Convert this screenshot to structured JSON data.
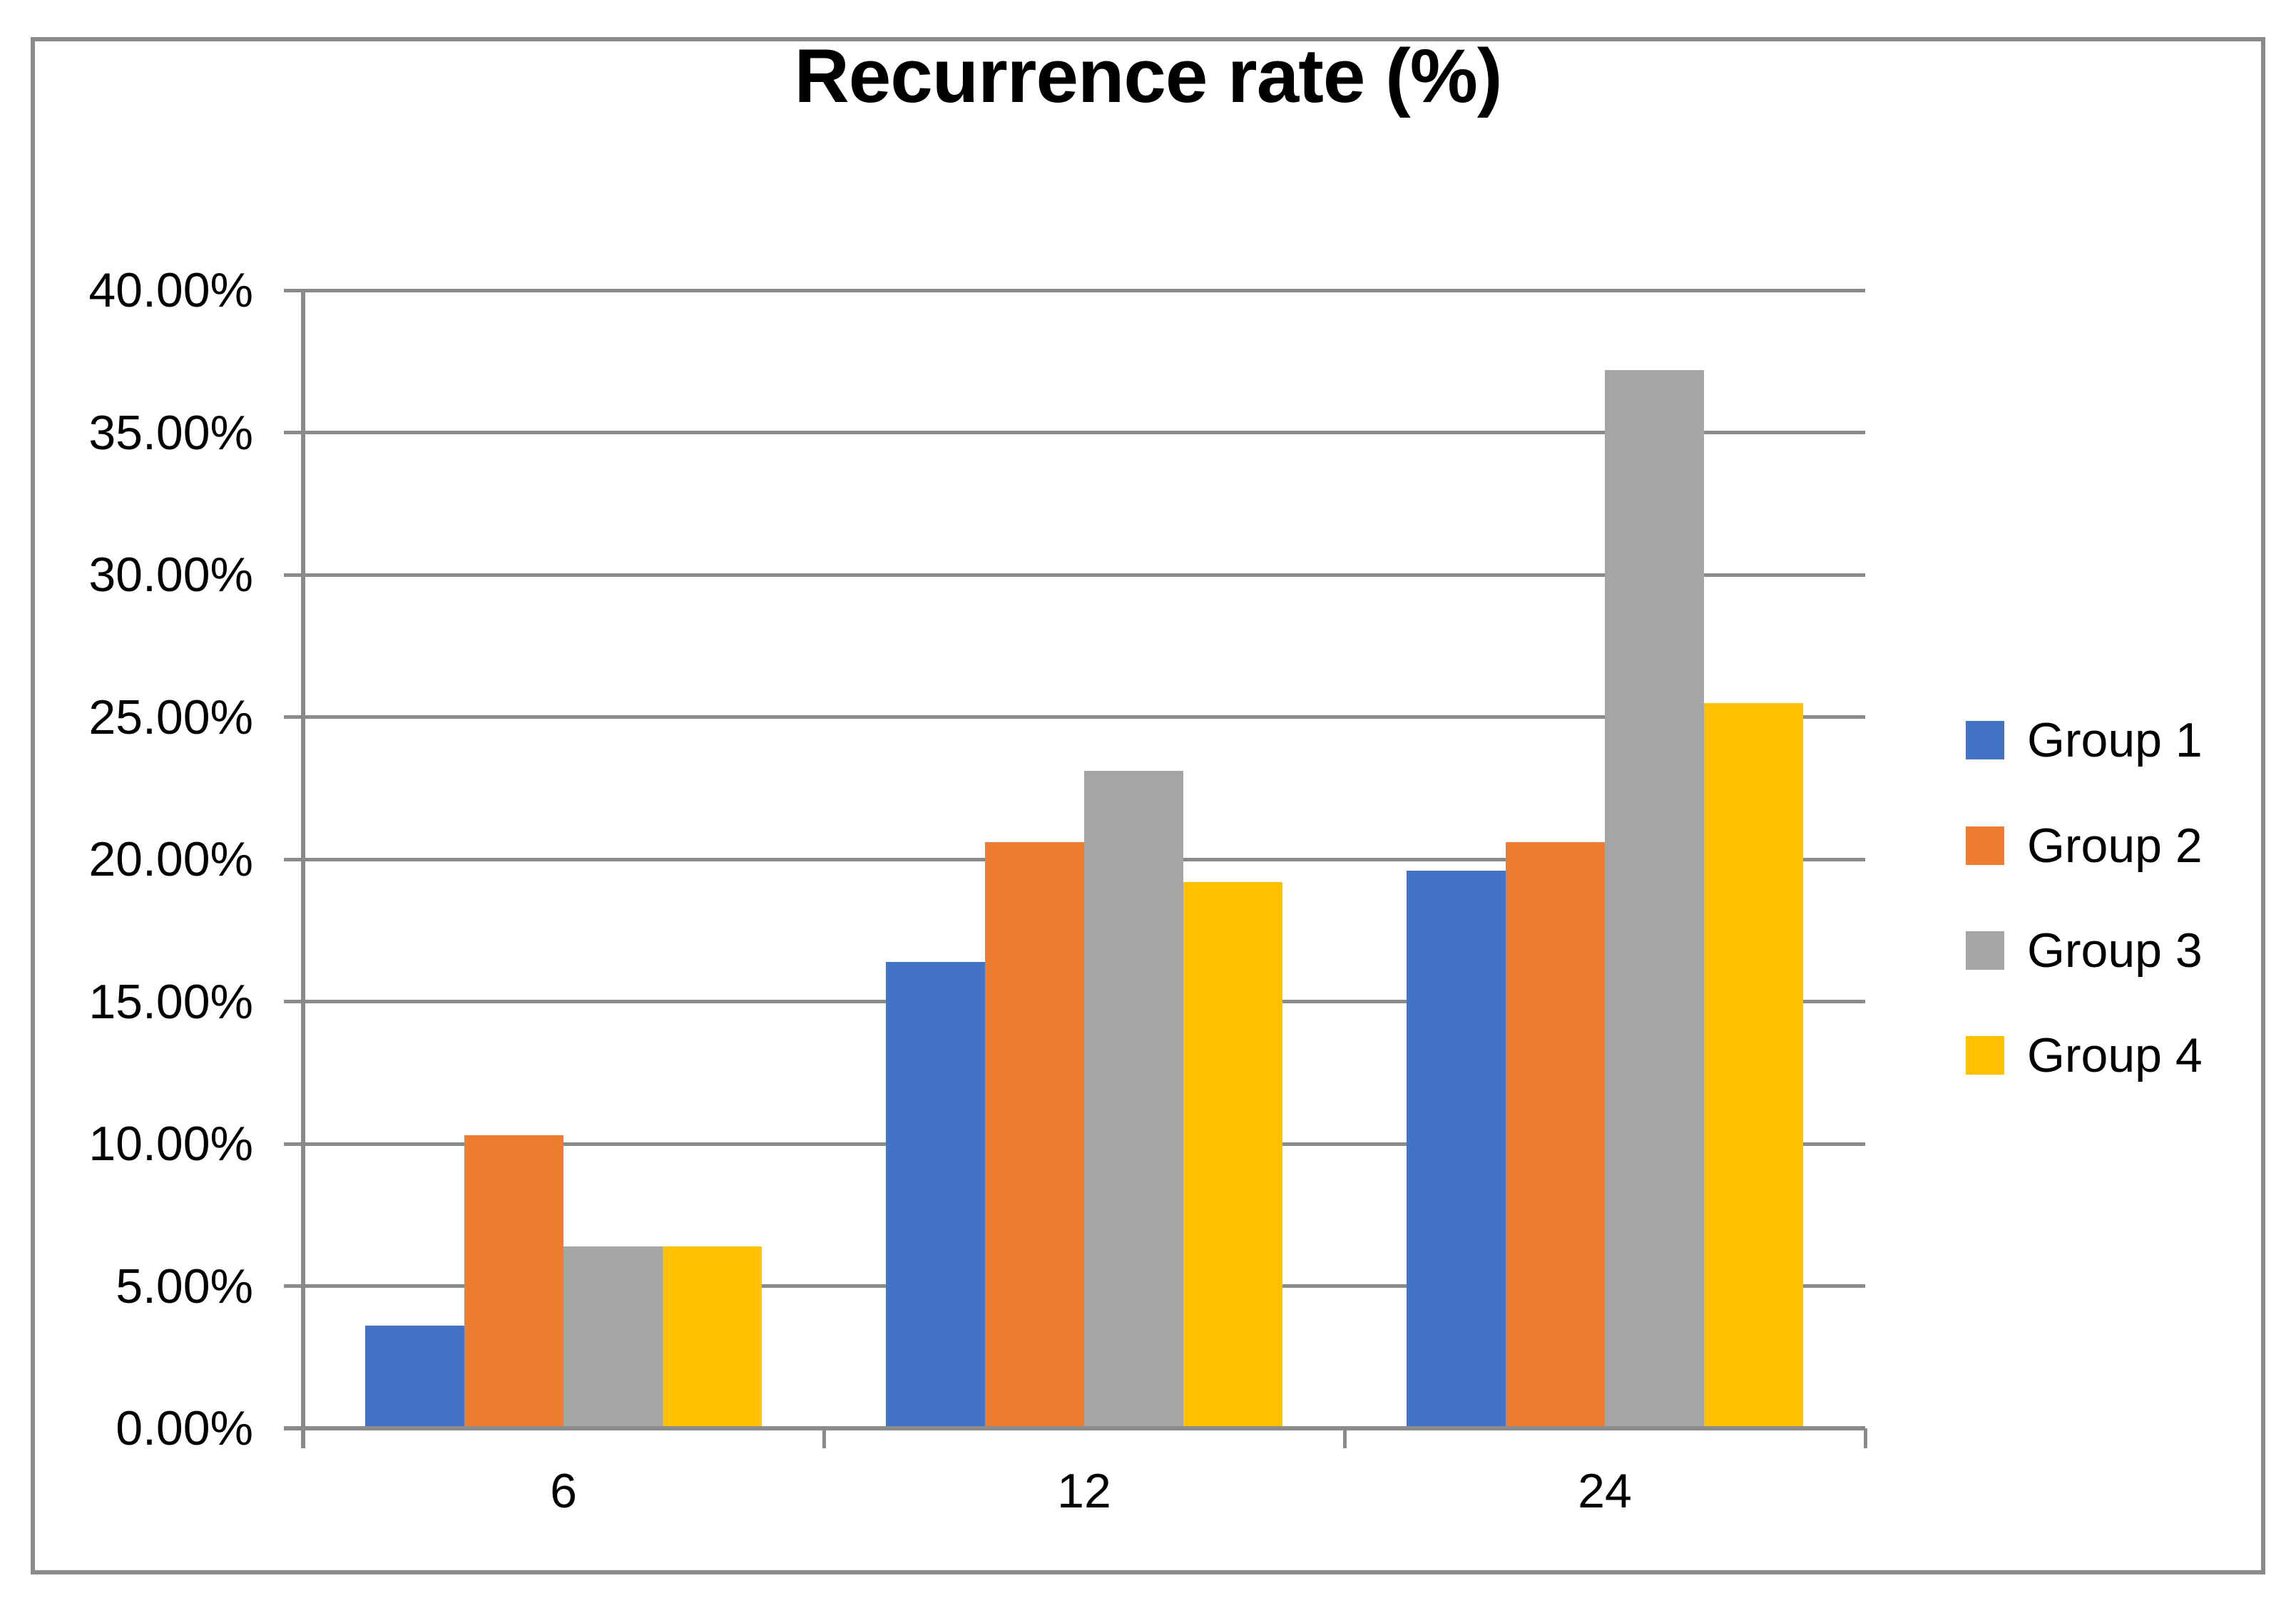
{
  "chart_data": {
    "type": "bar",
    "title": "Recurrence rate (%)",
    "categories": [
      "6",
      "12",
      "24"
    ],
    "series": [
      {
        "name": "Group 1",
        "color": "#4472C4",
        "values": [
          3.6,
          16.4,
          19.6
        ]
      },
      {
        "name": "Group 2",
        "color": "#ED7D31",
        "values": [
          10.3,
          20.6,
          20.6
        ]
      },
      {
        "name": "Group 3",
        "color": "#A5A5A5",
        "values": [
          6.4,
          23.1,
          37.2
        ]
      },
      {
        "name": "Group 4",
        "color": "#FFC000",
        "values": [
          6.4,
          19.2,
          25.5
        ]
      }
    ],
    "y_axis": {
      "min": 0,
      "max": 40,
      "step": 5,
      "tick_labels": [
        "0.00%",
        "5.00%",
        "10.00%",
        "15.00%",
        "20.00%",
        "25.00%",
        "30.00%",
        "35.00%",
        "40.00%"
      ]
    },
    "x_axis": {
      "tick_labels": [
        "6",
        "12",
        "24"
      ]
    },
    "legend": {
      "position": "right",
      "entries": [
        "Group 1",
        "Group 2",
        "Group 3",
        "Group 4"
      ]
    },
    "grid": true,
    "styles": {
      "background": "#ffffff",
      "text_color": "#000000",
      "grid_color": "#8a8a8a",
      "axis_color": "#8a8a8a",
      "border_color": "#8a8a8a"
    }
  }
}
